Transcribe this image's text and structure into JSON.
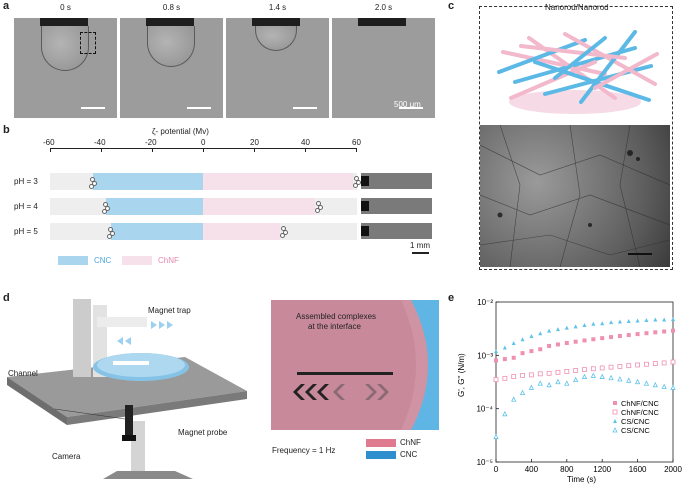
{
  "panels": {
    "a": "a",
    "b": "b",
    "c": "c",
    "d": "d",
    "e": "e"
  },
  "panel_a": {
    "times": [
      "0 s",
      "0.8 s",
      "1.4 s",
      "2.0 s"
    ],
    "scale_bar_label": "500 μm"
  },
  "panel_b": {
    "title": "ζ- potential (Mv)",
    "ticks": [
      "-60",
      "-40",
      "-20",
      "0",
      "20",
      "40",
      "60"
    ],
    "rows": [
      {
        "label": "pH = 3",
        "cnc": -43,
        "chnf": 59
      },
      {
        "label": "pH = 4",
        "cnc": -38,
        "chnf": 44
      },
      {
        "label": "pH = 5",
        "cnc": -36,
        "chnf": 30
      }
    ],
    "legend": [
      "CNC",
      "ChNF"
    ],
    "scale_bar_label": "1 mm",
    "colors": {
      "cnc": "#a9d5ee",
      "chnf": "#f6e1ea"
    }
  },
  "panel_c": {
    "title": "Nanorod/Nanorod"
  },
  "panel_d": {
    "labels": {
      "magnet_trap": "Magnet trap",
      "channel": "Channel",
      "magnet_probe": "Magnet probe",
      "camera": "Camera",
      "assembled": "Assembled complexes",
      "interface": "at the interface",
      "frequency": "Frequency = 1 Hz"
    },
    "legend": [
      "ChNF",
      "CNC"
    ],
    "colors": {
      "chnf": "#e07a8e",
      "cnc": "#2f8fce"
    }
  },
  "chart_data": {
    "type": "scatter",
    "xlabel": "Time (s)",
    "ylabel": "G', G'' (N/m)",
    "xlim": [
      0,
      2000
    ],
    "ylim": [
      1e-05,
      0.01
    ],
    "yscale": "log",
    "xticks": [
      "0",
      "400",
      "800",
      "1200",
      "1600",
      "2000"
    ],
    "yticks": [
      "10⁻²",
      "10⁻³",
      "10⁻⁴",
      "10⁻⁵"
    ],
    "series": [
      {
        "name": "ChNF/CNC",
        "marker": "filled-square",
        "color": "#ef8fb2",
        "x": [
          0,
          100,
          200,
          300,
          400,
          500,
          600,
          700,
          800,
          900,
          1000,
          1100,
          1200,
          1300,
          1400,
          1500,
          1600,
          1700,
          1800,
          1900,
          2000
        ],
        "y": [
          0.0008,
          0.00085,
          0.0009,
          0.0011,
          0.0012,
          0.0013,
          0.0015,
          0.0016,
          0.0017,
          0.0018,
          0.0019,
          0.002,
          0.0021,
          0.0022,
          0.0023,
          0.0024,
          0.0025,
          0.0026,
          0.0027,
          0.0028,
          0.0029
        ]
      },
      {
        "name": "ChNF/CNC",
        "marker": "open-square",
        "color": "#ef8fb2",
        "x": [
          0,
          100,
          200,
          300,
          400,
          500,
          600,
          700,
          800,
          900,
          1000,
          1100,
          1200,
          1300,
          1400,
          1500,
          1600,
          1700,
          1800,
          1900,
          2000
        ],
        "y": [
          0.00035,
          0.00037,
          0.0004,
          0.00042,
          0.00043,
          0.00045,
          0.00046,
          0.00048,
          0.0005,
          0.00052,
          0.00054,
          0.00056,
          0.00058,
          0.0006,
          0.00062,
          0.00064,
          0.00066,
          0.00068,
          0.0007,
          0.00072,
          0.00075
        ]
      },
      {
        "name": "CS/CNC",
        "marker": "filled-triangle",
        "color": "#5ec3ea",
        "x": [
          0,
          100,
          200,
          300,
          400,
          500,
          600,
          700,
          800,
          900,
          1000,
          1100,
          1200,
          1300,
          1400,
          1500,
          1600,
          1700,
          1800,
          1900,
          2000
        ],
        "y": [
          0.0012,
          0.0014,
          0.0017,
          0.002,
          0.0023,
          0.0026,
          0.0029,
          0.0031,
          0.0033,
          0.0035,
          0.0037,
          0.0039,
          0.004,
          0.0042,
          0.0043,
          0.0044,
          0.0045,
          0.0046,
          0.0047,
          0.0047,
          0.0048
        ]
      },
      {
        "name": "CS/CNC",
        "marker": "open-triangle",
        "color": "#5ec3ea",
        "x": [
          0,
          100,
          200,
          300,
          400,
          500,
          600,
          700,
          800,
          900,
          1000,
          1100,
          1200,
          1300,
          1400,
          1500,
          1600,
          1700,
          1800,
          1900,
          2000
        ],
        "y": [
          3e-05,
          8e-05,
          0.00015,
          0.0002,
          0.00025,
          0.0003,
          0.00028,
          0.00032,
          0.0003,
          0.00035,
          0.0004,
          0.00042,
          0.0004,
          0.00038,
          0.00036,
          0.00034,
          0.00032,
          0.0003,
          0.00028,
          0.00026,
          0.00025
        ]
      }
    ]
  }
}
